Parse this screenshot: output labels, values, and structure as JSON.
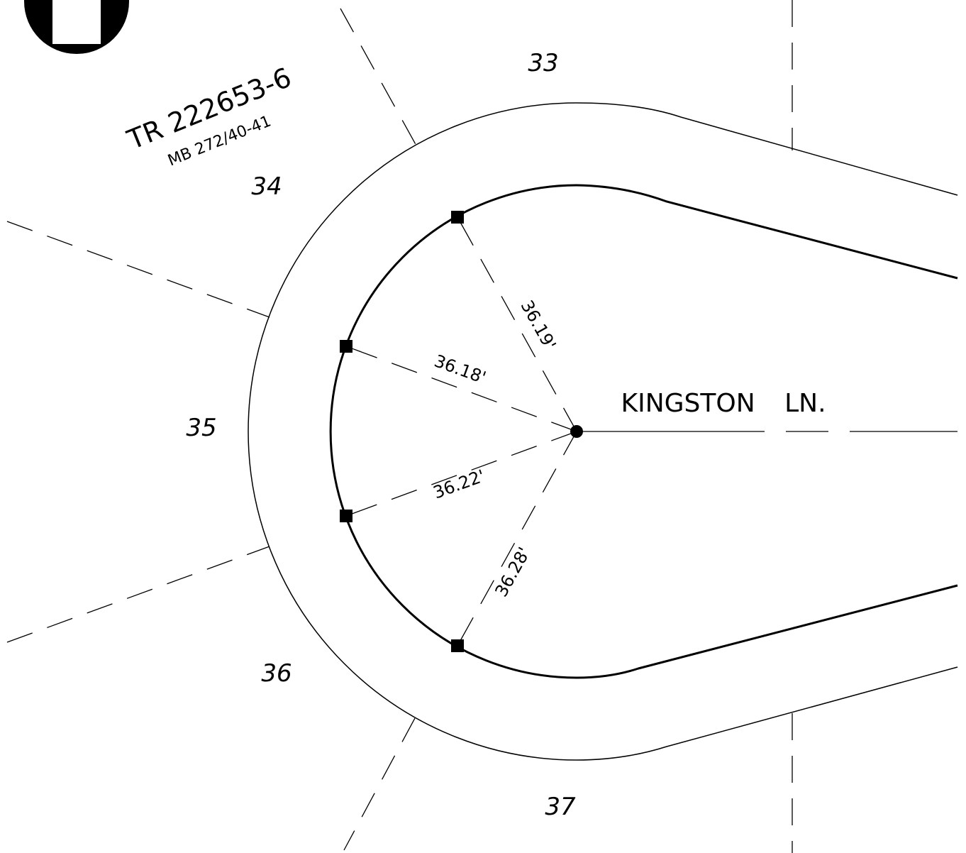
{
  "tract": {
    "number": "TR 222653-6",
    "map_book": "MB 272/40-41"
  },
  "lots": [
    "33",
    "34",
    "35",
    "36",
    "37"
  ],
  "street": "KINGSTON LN.",
  "radii": [
    "36.19'",
    "36.18'",
    "36.22'",
    "36.28'"
  ]
}
